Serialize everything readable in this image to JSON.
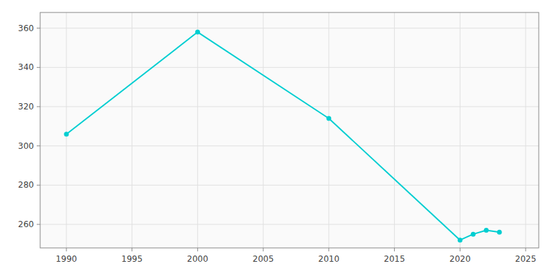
{
  "chart_data": {
    "type": "line",
    "x": [
      1990,
      2000,
      2010,
      2020,
      2021,
      2022,
      2023
    ],
    "values": [
      306,
      358,
      314,
      252,
      255,
      257,
      256
    ],
    "color": "#00CED1",
    "marker": "circle",
    "xlim": [
      1988,
      2026
    ],
    "ylim": [
      248,
      368
    ],
    "xticks": [
      1990,
      1995,
      2000,
      2005,
      2010,
      2015,
      2020,
      2025
    ],
    "yticks": [
      260,
      280,
      300,
      320,
      340,
      360
    ],
    "grid": true
  }
}
